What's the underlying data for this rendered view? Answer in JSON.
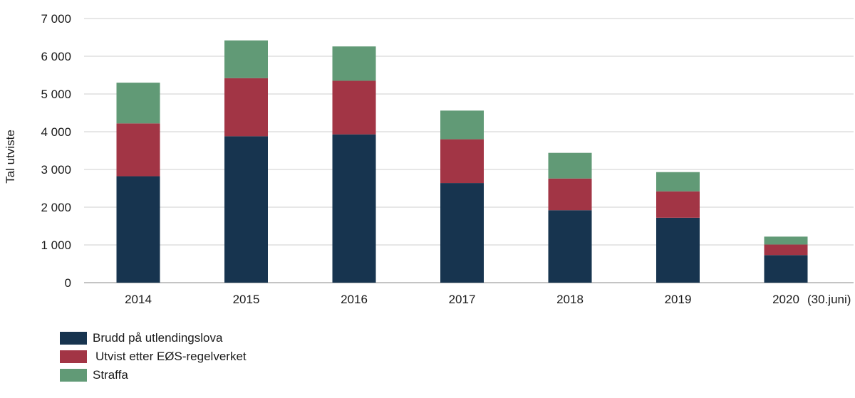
{
  "chart_data": {
    "type": "bar",
    "stacked": true,
    "title": "",
    "xlabel": "",
    "ylabel": "Tal utviste",
    "ylim": [
      0,
      7000
    ],
    "yticks": [
      0,
      1000,
      2000,
      3000,
      4000,
      5000,
      6000,
      7000
    ],
    "ytick_labels": [
      "0",
      "1 000",
      "2 000",
      "3 000",
      "4 000",
      "5 000",
      "6 000",
      "7 000"
    ],
    "grid": "horizontal",
    "legend_position": "bottom-left",
    "categories": [
      "2014",
      "2015",
      "2016",
      "2017",
      "2018",
      "2019",
      "2020"
    ],
    "category_annotation": {
      "category": "2020",
      "text": "(30.juni)"
    },
    "series": [
      {
        "name": "Brudd på utlendingslova",
        "color": "#17344f",
        "values": [
          2820,
          3880,
          3930,
          2640,
          1920,
          1720,
          730
        ]
      },
      {
        "name": "Utvist etter EØS-regelverket",
        "color": "#a23545",
        "values": [
          1400,
          1540,
          1420,
          1160,
          840,
          700,
          280
        ]
      },
      {
        "name": "Straffa",
        "color": "#619a76",
        "values": [
          1080,
          1000,
          910,
          760,
          680,
          510,
          210
        ]
      }
    ]
  }
}
